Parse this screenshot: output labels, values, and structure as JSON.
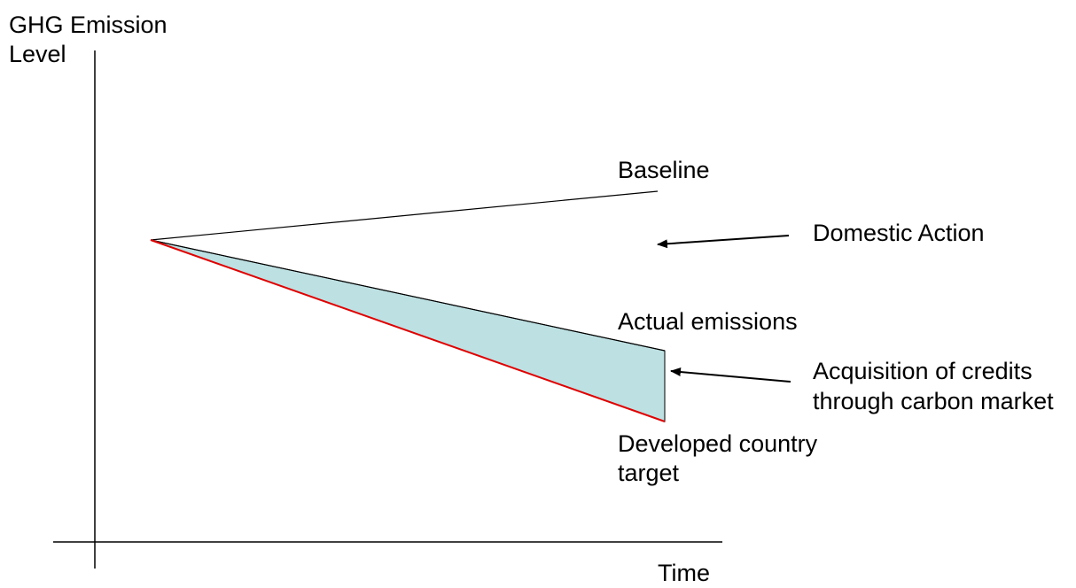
{
  "diagram": {
    "y_axis_label_line1": "GHG Emission",
    "y_axis_label_line2": "Level",
    "x_axis_label": "Time",
    "baseline_label": "Baseline",
    "domestic_action_label": "Domestic Action",
    "actual_emissions_label": "Actual emissions",
    "credits_label_line1": "Acquisition of credits",
    "credits_label_line2": "through carbon market",
    "target_label_line1": "Developed country",
    "target_label_line2": "target"
  },
  "colors": {
    "line": "#000000",
    "target_line": "#e00000",
    "credits_fill": "#bde0e2"
  }
}
